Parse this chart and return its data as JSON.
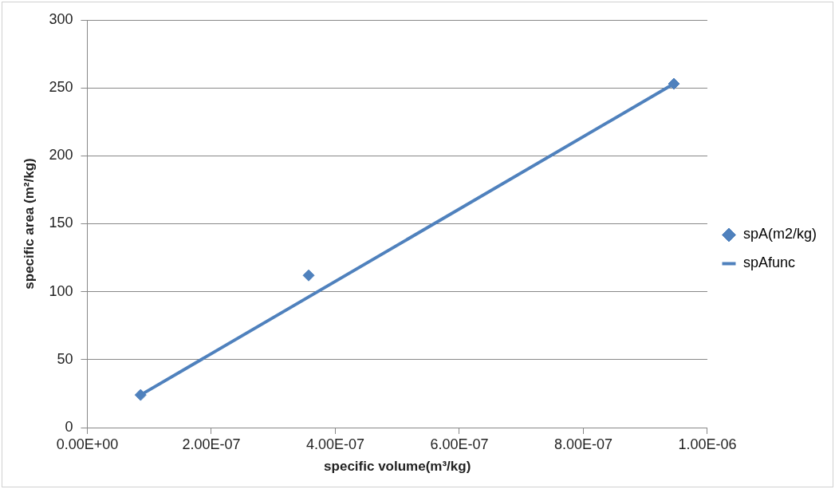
{
  "chart_data": {
    "type": "scatter",
    "xlabel": "specific volume(m³/kg)",
    "ylabel": "specific area (m²/kg)",
    "series": [
      {
        "name": "spA(m2/kg)",
        "color": "#4f81bd",
        "marker": "diamond",
        "x": [
          8.6e-08,
          3.57e-07,
          9.46e-07
        ],
        "values": [
          24,
          112,
          253
        ]
      },
      {
        "name": "spAfunc",
        "type": "line",
        "color": "#4f81bd",
        "marker": "none",
        "line_style": "solid",
        "x": [
          8.6e-08,
          9.46e-07
        ],
        "values": [
          24,
          253
        ]
      }
    ],
    "xlim": [
      0,
      1e-06
    ],
    "xticks": [
      {
        "value": 0,
        "label": "0.00E+00"
      },
      {
        "value": 2e-07,
        "label": "2.00E-07"
      },
      {
        "value": 4e-07,
        "label": "4.00E-07"
      },
      {
        "value": 6e-07,
        "label": "6.00E-07"
      },
      {
        "value": 8e-07,
        "label": "8.00E-07"
      },
      {
        "value": 1e-06,
        "label": "1.00E-06"
      }
    ],
    "ylim": [
      0,
      300
    ],
    "yticks": [
      0,
      50,
      100,
      150,
      200,
      250,
      300
    ],
    "grid": "y",
    "legend": "right"
  }
}
